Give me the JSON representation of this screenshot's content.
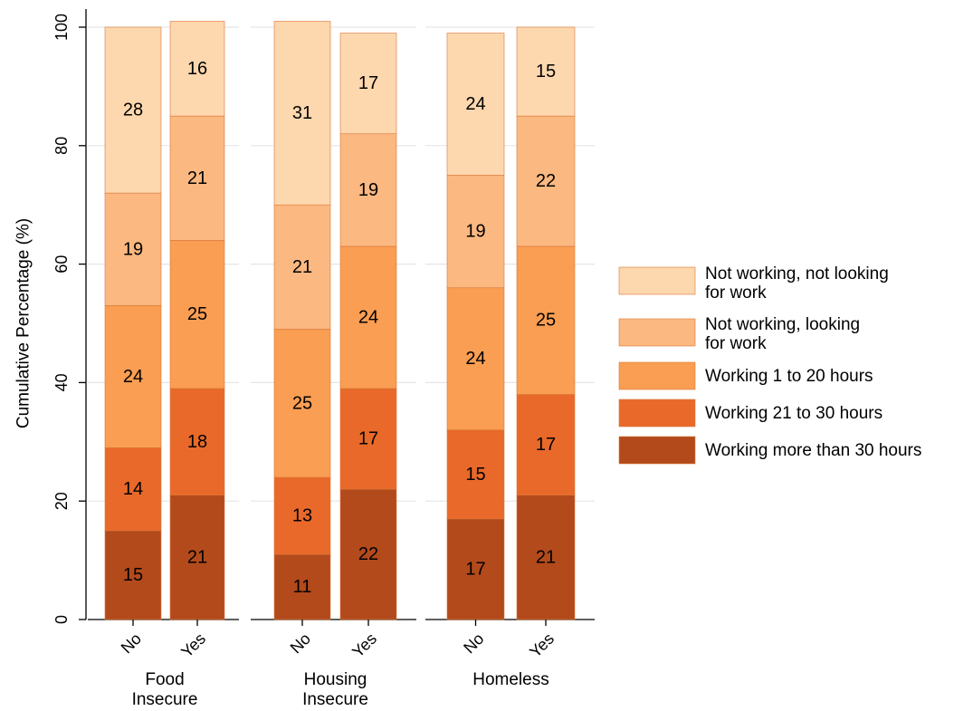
{
  "chart_data": {
    "type": "bar",
    "stacked": true,
    "ylabel": "Cumulative Percentage (%)",
    "ylim": [
      0,
      100
    ],
    "yticks": [
      0,
      20,
      40,
      60,
      80,
      100
    ],
    "grid": true,
    "legend_position": "right",
    "categories": [
      "No",
      "Yes"
    ],
    "panels": [
      {
        "label": "Food\nInsecure",
        "values": {
          "No": [
            15,
            14,
            24,
            19,
            28
          ],
          "Yes": [
            21,
            18,
            25,
            21,
            16
          ]
        }
      },
      {
        "label": "Housing\nInsecure",
        "values": {
          "No": [
            11,
            13,
            25,
            21,
            31
          ],
          "Yes": [
            22,
            17,
            24,
            19,
            17
          ]
        }
      },
      {
        "label": "Homeless",
        "values": {
          "No": [
            17,
            15,
            24,
            19,
            24
          ],
          "Yes": [
            21,
            17,
            25,
            22,
            15
          ]
        }
      }
    ],
    "series": [
      {
        "name": "Working more than 30 hours",
        "color": "#b24a1c"
      },
      {
        "name": "Working 21 to 30 hours",
        "color": "#e8692a"
      },
      {
        "name": "Working 1 to 20 hours",
        "color": "#f99e52"
      },
      {
        "name": "Not working, looking\nfor work",
        "color": "#fbb880"
      },
      {
        "name": "Not working, not looking\nfor work",
        "color": "#fdd7ae"
      }
    ]
  }
}
